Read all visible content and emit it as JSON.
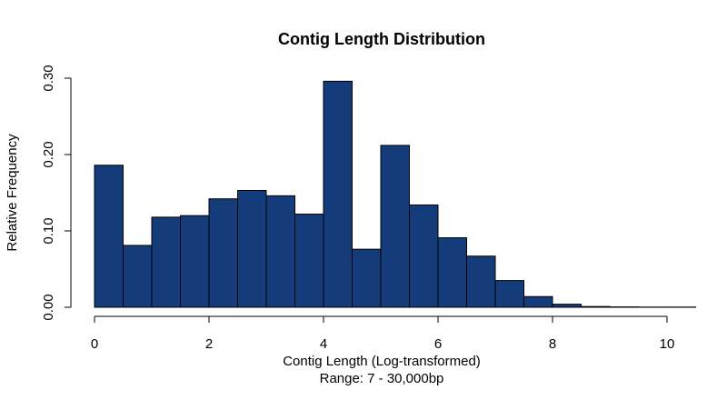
{
  "chart_data": {
    "type": "bar",
    "title": "Contig Length Distribution",
    "xlabel": "Contig Length (Log-transformed)",
    "subtitle": "Range: 7 - 30,000bp",
    "ylabel": "Relative Frequency",
    "bin_width": 0.5,
    "bin_starts": [
      0,
      0.5,
      1,
      1.5,
      2,
      2.5,
      3,
      3.5,
      4,
      4.5,
      5,
      5.5,
      6,
      6.5,
      7,
      7.5,
      8,
      8.5,
      9,
      9.5,
      10
    ],
    "values": [
      0.186,
      0.081,
      0.118,
      0.12,
      0.142,
      0.153,
      0.146,
      0.122,
      0.296,
      0.076,
      0.212,
      0.134,
      0.091,
      0.067,
      0.035,
      0.014,
      0.004,
      0.001,
      0.0005,
      0.0003,
      0.0003
    ],
    "xlim": [
      0,
      10.5
    ],
    "ylim": [
      0,
      0.3
    ],
    "x_ticks": [
      "0",
      "2",
      "4",
      "6",
      "8",
      "10"
    ],
    "y_ticks": [
      "0.00",
      "0.10",
      "0.20",
      "0.30"
    ],
    "bar_color": "#143c7a",
    "grid": false,
    "legend": "none"
  }
}
